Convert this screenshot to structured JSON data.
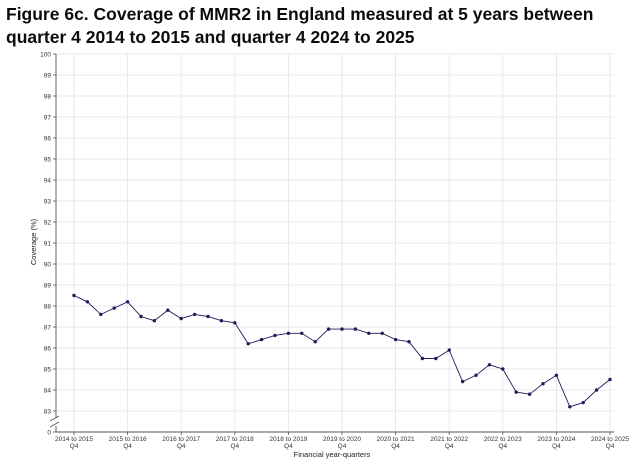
{
  "chart_data": {
    "type": "line",
    "title": "Figure 6c. Coverage of MMR2 in England measured at 5 years between quarter 4 2014 to 2015 and quarter 4 2024 to 2025",
    "xlabel": "Financial year-quarters",
    "ylabel": "Coverage (%)",
    "ylim": [
      83,
      100
    ],
    "y_axis_break": true,
    "y_ticks": [
      "0",
      "83",
      "84",
      "85",
      "86",
      "87",
      "88",
      "89",
      "90",
      "91",
      "92",
      "93",
      "94",
      "95",
      "96",
      "97",
      "98",
      "99",
      "100"
    ],
    "x_tick_labels": [
      {
        "index": 0,
        "line1": "2014 to 2015",
        "line2": "Q4"
      },
      {
        "index": 4,
        "line1": "2015 to 2016",
        "line2": "Q4"
      },
      {
        "index": 8,
        "line1": "2016 to 2017",
        "line2": "Q4"
      },
      {
        "index": 12,
        "line1": "2017 to 2018",
        "line2": "Q4"
      },
      {
        "index": 16,
        "line1": "2018 to 2019",
        "line2": "Q4"
      },
      {
        "index": 20,
        "line1": "2019 to 2020",
        "line2": "Q4"
      },
      {
        "index": 24,
        "line1": "2020 to 2021",
        "line2": "Q4"
      },
      {
        "index": 28,
        "line1": "2021 to 2022",
        "line2": "Q4"
      },
      {
        "index": 32,
        "line1": "2022 to 2023",
        "line2": "Q4"
      },
      {
        "index": 36,
        "line1": "2023 to 2024",
        "line2": "Q4"
      },
      {
        "index": 40,
        "line1": "2024 to 2025",
        "line2": "Q4"
      }
    ],
    "grid": true,
    "colors": {
      "line": "#1d1d5a",
      "grid": "#e3e3e3",
      "axis": "#555555"
    },
    "series": [
      {
        "values": [
          88.5,
          88.2,
          87.6,
          87.9,
          88.2,
          87.5,
          87.3,
          87.8,
          87.4,
          87.6,
          87.5,
          87.3,
          87.2,
          86.2,
          86.4,
          86.6,
          86.7,
          86.7,
          86.3,
          86.9,
          86.9,
          86.9,
          86.7,
          86.7,
          86.4,
          86.3,
          85.5,
          85.5,
          85.9,
          84.4,
          84.7,
          85.2,
          85.0,
          83.9,
          83.8,
          84.3,
          84.7,
          83.2,
          83.4,
          84.0,
          84.5
        ]
      }
    ]
  }
}
